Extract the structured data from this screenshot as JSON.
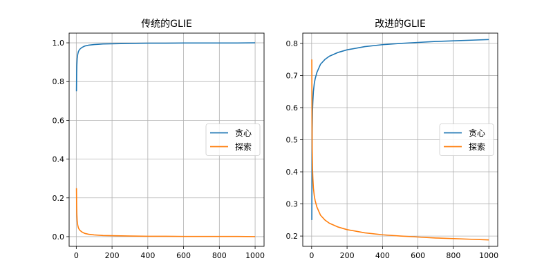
{
  "colors": {
    "series_1": "#1f77b4",
    "series_2": "#ff7f0e",
    "grid": "#b0b0b0",
    "axes": "#000000"
  },
  "chart_data": [
    {
      "type": "line",
      "title": "传统的GLIE",
      "xlabel": "",
      "ylabel": "",
      "xlim": [
        -40,
        1050
      ],
      "ylim": [
        -0.05,
        1.05
      ],
      "xticks": [
        0,
        200,
        400,
        600,
        800,
        1000
      ],
      "yticks": [
        0.0,
        0.2,
        0.4,
        0.6,
        0.8,
        1.0
      ],
      "xtick_labels": [
        "0",
        "200",
        "400",
        "600",
        "800",
        "1000"
      ],
      "ytick_labels": [
        "0.0",
        "0.2",
        "0.4",
        "0.6",
        "0.8",
        "1.0"
      ],
      "grid": true,
      "legend_position": "center-right",
      "series": [
        {
          "name": "贪心",
          "color": "#1f77b4",
          "x": [
            1,
            2,
            3,
            5,
            8,
            12,
            16,
            20,
            30,
            40,
            50,
            70,
            100,
            150,
            200,
            300,
            400,
            500,
            600,
            700,
            800,
            900,
            1000
          ],
          "y": [
            0.75,
            0.84,
            0.88,
            0.92,
            0.94,
            0.955,
            0.962,
            0.967,
            0.975,
            0.98,
            0.984,
            0.988,
            0.991,
            0.994,
            0.995,
            0.997,
            0.998,
            0.998,
            0.999,
            0.999,
            0.999,
            0.999,
            1.0
          ]
        },
        {
          "name": "探索",
          "color": "#ff7f0e",
          "x": [
            1,
            2,
            3,
            5,
            8,
            12,
            16,
            20,
            30,
            40,
            50,
            70,
            100,
            150,
            200,
            300,
            400,
            500,
            600,
            700,
            800,
            900,
            1000
          ],
          "y": [
            0.25,
            0.16,
            0.12,
            0.08,
            0.06,
            0.045,
            0.038,
            0.033,
            0.025,
            0.02,
            0.016,
            0.012,
            0.009,
            0.006,
            0.005,
            0.003,
            0.002,
            0.002,
            0.001,
            0.001,
            0.001,
            0.001,
            0.0
          ]
        }
      ]
    },
    {
      "type": "line",
      "title": "改进的GLIE",
      "xlabel": "",
      "ylabel": "",
      "xlim": [
        -50,
        1050
      ],
      "ylim": [
        0.168,
        0.832
      ],
      "xticks": [
        0,
        200,
        400,
        600,
        800,
        1000
      ],
      "yticks": [
        0.2,
        0.3,
        0.4,
        0.5,
        0.6,
        0.7,
        0.8
      ],
      "xtick_labels": [
        "0",
        "200",
        "400",
        "600",
        "800",
        "1000"
      ],
      "ytick_labels": [
        "0.2",
        "0.3",
        "0.4",
        "0.5",
        "0.6",
        "0.7",
        "0.8"
      ],
      "grid": true,
      "legend_position": "center-right",
      "series": [
        {
          "name": "贪心",
          "color": "#1f77b4",
          "x": [
            1,
            2,
            3,
            5,
            7,
            10,
            15,
            20,
            30,
            50,
            75,
            100,
            150,
            200,
            300,
            400,
            500,
            600,
            700,
            800,
            900,
            1000
          ],
          "y": [
            0.25,
            0.43,
            0.52,
            0.59,
            0.62,
            0.65,
            0.675,
            0.69,
            0.71,
            0.735,
            0.75,
            0.76,
            0.772,
            0.78,
            0.79,
            0.796,
            0.8,
            0.803,
            0.806,
            0.808,
            0.81,
            0.812
          ]
        },
        {
          "name": "探索",
          "color": "#ff7f0e",
          "x": [
            1,
            2,
            3,
            5,
            7,
            10,
            15,
            20,
            30,
            50,
            75,
            100,
            150,
            200,
            300,
            400,
            500,
            600,
            700,
            800,
            900,
            1000
          ],
          "y": [
            0.75,
            0.57,
            0.48,
            0.41,
            0.38,
            0.35,
            0.325,
            0.31,
            0.29,
            0.265,
            0.25,
            0.24,
            0.228,
            0.22,
            0.21,
            0.204,
            0.2,
            0.197,
            0.194,
            0.192,
            0.19,
            0.188
          ]
        }
      ]
    }
  ]
}
